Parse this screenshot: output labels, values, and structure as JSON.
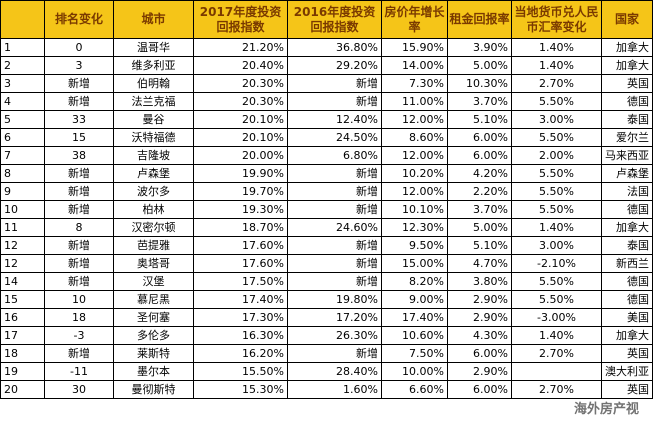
{
  "headers": [
    "",
    "排名变化",
    "城市",
    "2017年度投资回报指数",
    "2016年度投资回报指数",
    "房价年增长率",
    "租金回报率",
    "当地货币兑人民币汇率变化",
    "国家"
  ],
  "rows": [
    [
      "1",
      "0",
      "温哥华",
      "21.20%",
      "36.80%",
      "15.90%",
      "3.90%",
      "1.40%",
      "加拿大"
    ],
    [
      "2",
      "3",
      "维多利亚",
      "20.40%",
      "29.20%",
      "14.00%",
      "5.00%",
      "1.40%",
      "加拿大"
    ],
    [
      "3",
      "新增",
      "伯明翰",
      "20.30%",
      "新增",
      "7.30%",
      "10.30%",
      "2.70%",
      "英国"
    ],
    [
      "4",
      "新增",
      "法兰克福",
      "20.30%",
      "新增",
      "11.00%",
      "3.70%",
      "5.50%",
      "德国"
    ],
    [
      "5",
      "33",
      "曼谷",
      "20.10%",
      "12.40%",
      "12.00%",
      "5.10%",
      "3.00%",
      "泰国"
    ],
    [
      "6",
      "15",
      "沃特福德",
      "20.10%",
      "24.50%",
      "8.60%",
      "6.00%",
      "5.50%",
      "爱尔兰"
    ],
    [
      "7",
      "38",
      "吉隆坡",
      "20.00%",
      "6.80%",
      "12.00%",
      "6.00%",
      "2.00%",
      "马来西亚"
    ],
    [
      "8",
      "新增",
      "卢森堡",
      "19.90%",
      "新增",
      "10.20%",
      "4.20%",
      "5.50%",
      "卢森堡"
    ],
    [
      "9",
      "新增",
      "波尔多",
      "19.70%",
      "新增",
      "12.00%",
      "2.20%",
      "5.50%",
      "法国"
    ],
    [
      "10",
      "新增",
      "柏林",
      "19.30%",
      "新增",
      "10.10%",
      "3.70%",
      "5.50%",
      "德国"
    ],
    [
      "11",
      "8",
      "汉密尔顿",
      "18.70%",
      "24.60%",
      "12.30%",
      "5.00%",
      "1.40%",
      "加拿大"
    ],
    [
      "12",
      "新增",
      "芭提雅",
      "17.60%",
      "新增",
      "9.50%",
      "5.10%",
      "3.00%",
      "泰国"
    ],
    [
      "12",
      "新增",
      "奥塔哥",
      "17.60%",
      "新增",
      "15.00%",
      "4.70%",
      "-2.10%",
      "新西兰"
    ],
    [
      "14",
      "新增",
      "汉堡",
      "17.50%",
      "新增",
      "8.20%",
      "3.80%",
      "5.50%",
      "德国"
    ],
    [
      "15",
      "10",
      "慕尼黑",
      "17.40%",
      "19.80%",
      "9.00%",
      "2.90%",
      "5.50%",
      "德国"
    ],
    [
      "16",
      "18",
      "圣何塞",
      "17.30%",
      "17.20%",
      "17.40%",
      "2.90%",
      "-3.00%",
      "美国"
    ],
    [
      "17",
      "-3",
      "多伦多",
      "16.30%",
      "26.30%",
      "10.60%",
      "4.30%",
      "1.40%",
      "加拿大"
    ],
    [
      "18",
      "新增",
      "莱斯特",
      "16.20%",
      "新增",
      "7.50%",
      "6.00%",
      "2.70%",
      "英国"
    ],
    [
      "19",
      "-11",
      "墨尔本",
      "15.50%",
      "28.40%",
      "10.00%",
      "2.90%",
      "",
      "澳大利亚"
    ],
    [
      "20",
      "30",
      "曼彻斯特",
      "15.30%",
      "1.60%",
      "6.60%",
      "6.00%",
      "2.70%",
      "英国"
    ]
  ],
  "watermark": "海外房产视"
}
